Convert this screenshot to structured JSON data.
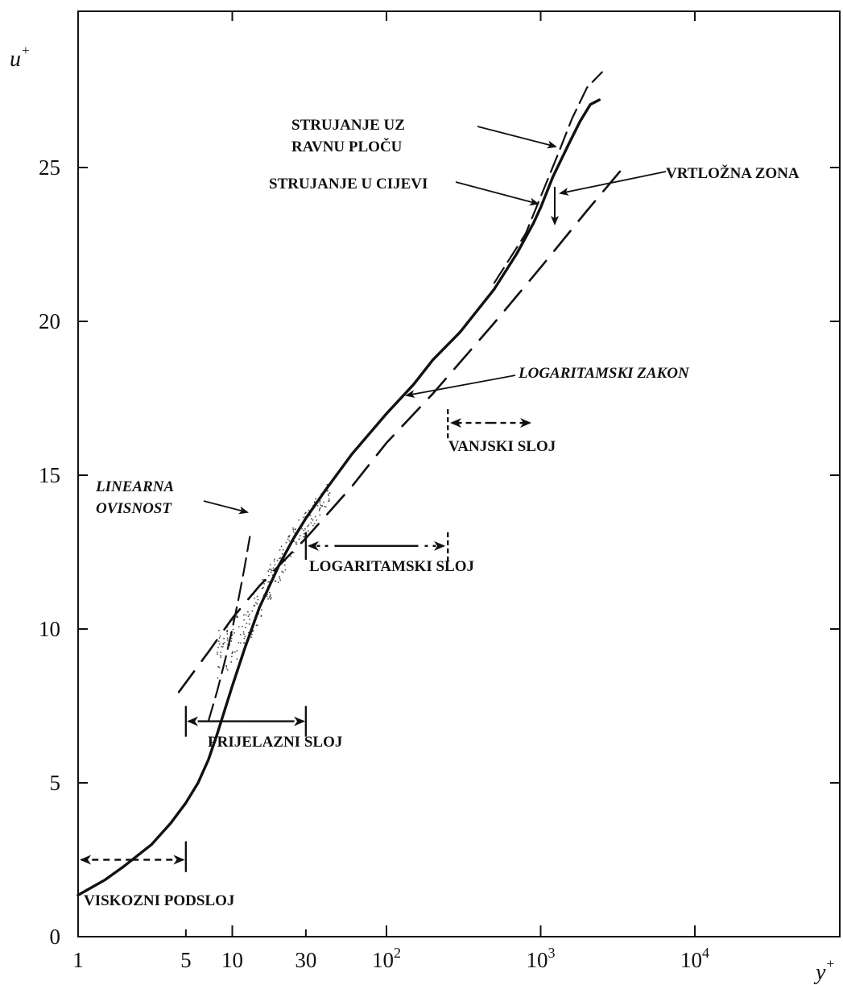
{
  "chart_data": {
    "type": "line",
    "x_scale": "log",
    "xlim": [
      1,
      5000
    ],
    "ylim": [
      0,
      30
    ],
    "xlabel": "y",
    "xlabel_sup": "+",
    "ylabel": "u",
    "ylabel_sup": "+",
    "x_ticks": [
      {
        "value": 1,
        "label": "1"
      },
      {
        "value": 5,
        "label": "5"
      },
      {
        "value": 10,
        "label": "10"
      },
      {
        "value": 30,
        "label": "30"
      },
      {
        "value": 100,
        "label": "10",
        "sup": "2"
      },
      {
        "value": 1000,
        "label": "10",
        "sup": "3"
      },
      {
        "value": 10000,
        "label": "10",
        "sup": "4"
      }
    ],
    "y_ticks": [
      {
        "value": 0,
        "label": "0"
      },
      {
        "value": 5,
        "label": "5"
      },
      {
        "value": 10,
        "label": "10"
      },
      {
        "value": 15,
        "label": "15"
      },
      {
        "value": 20,
        "label": "20"
      },
      {
        "value": 25,
        "label": "25"
      }
    ],
    "series": [
      {
        "style": "solid",
        "x": [
          1,
          1.5,
          2,
          3,
          4,
          5,
          6,
          7,
          8,
          10,
          12,
          15,
          20,
          25,
          30,
          40,
          60,
          100,
          150,
          200,
          300,
          500,
          700,
          900,
          1000,
          1200,
          1500,
          1800,
          2100,
          2400
        ],
        "y": [
          1.35,
          1.85,
          2.3,
          3.0,
          3.7,
          4.35,
          5.0,
          5.75,
          6.6,
          8.15,
          9.35,
          10.7,
          12.05,
          12.95,
          13.6,
          14.5,
          15.7,
          17.0,
          17.95,
          18.75,
          19.65,
          21.05,
          22.2,
          23.2,
          23.7,
          24.7,
          25.7,
          26.5,
          27.05,
          27.2
        ]
      },
      {
        "style": "dashed",
        "x": [
          7,
          8,
          9,
          10,
          11,
          12,
          13
        ],
        "y": [
          7,
          8,
          9,
          10,
          11,
          12,
          13
        ]
      },
      {
        "style": "long-dashed",
        "x": [
          4.5,
          7,
          10,
          15,
          20,
          30,
          60,
          100,
          200,
          500,
          1000,
          2000,
          3500
        ],
        "y": [
          7.95,
          9.25,
          10.35,
          11.4,
          12.05,
          12.95,
          14.65,
          16.05,
          17.65,
          19.95,
          21.75,
          23.6,
          25.05
        ]
      },
      {
        "style": "dashed",
        "x": [
          500,
          800,
          1000,
          1300,
          1600,
          2000,
          2500
        ],
        "y": [
          21.25,
          22.85,
          24.05,
          25.45,
          26.6,
          27.6,
          28.1
        ]
      }
    ],
    "annotations": [
      {
        "name": "strujanje-uz-ravnu-plocu",
        "lines": [
          "STRUJANJE UZ",
          "RAVNU PLOČU"
        ],
        "italic": false
      },
      {
        "name": "vrtlozna-zona",
        "lines": [
          "VRTLOŽNA ZONA"
        ],
        "italic": false
      },
      {
        "name": "strujanje-u-cijevi",
        "lines": [
          "STRUJANJE U CIJEVI"
        ],
        "italic": false
      },
      {
        "name": "logaritamski-zakon",
        "lines": [
          "LOGARITAMSKI ZAKON"
        ],
        "italic": true
      },
      {
        "name": "vanjski-sloj",
        "lines": [
          "VANJSKI SLOJ"
        ],
        "italic": false
      },
      {
        "name": "linearna-ovisnost",
        "lines": [
          "LINEARNA",
          "OVISNOST"
        ],
        "italic": true
      },
      {
        "name": "logaritamski-sloj",
        "lines": [
          "LOGARITAMSKI SLOJ"
        ],
        "italic": false
      },
      {
        "name": "prijelazni-sloj",
        "lines": [
          "PRIJELAZNI SLOJ"
        ],
        "italic": false
      },
      {
        "name": "viskozni-podsloj",
        "lines": [
          "VISKOZNI PODSLOJ"
        ],
        "italic": false
      }
    ],
    "regions": [
      {
        "name": "viskozni-podsloj",
        "from": 1,
        "to": 5,
        "y": 2.5
      },
      {
        "name": "prijelazni-sloj",
        "from": 5,
        "to": 30,
        "y": 7.0
      },
      {
        "name": "logaritamski-sloj",
        "from": 30,
        "to": 250,
        "y": 12.7
      },
      {
        "name": "vanjski-sloj",
        "from": 250,
        "to": 900,
        "y": 16.7
      }
    ],
    "grid": false,
    "legend": "none"
  }
}
